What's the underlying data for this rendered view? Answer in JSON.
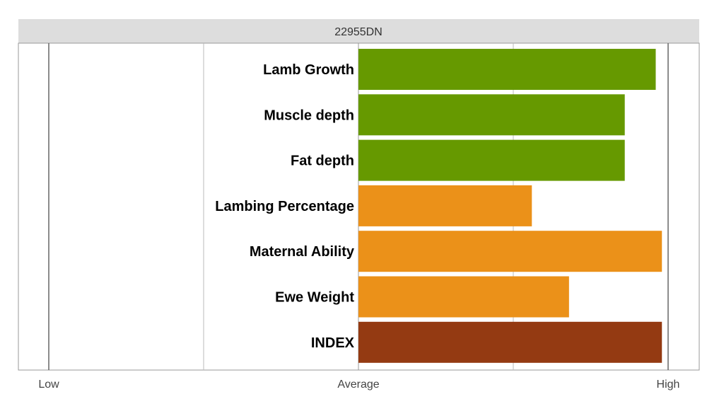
{
  "chart_data": {
    "type": "bar",
    "orientation": "horizontal",
    "title": "22955DN",
    "categories": [
      "Lamb Growth",
      "Muscle depth",
      "Fat depth",
      "Lambing Percentage",
      "Maternal Ability",
      "Ewe Weight",
      "INDEX"
    ],
    "values": [
      0.96,
      0.86,
      0.86,
      0.56,
      0.98,
      0.68,
      0.98
    ],
    "bar_colors": [
      "#669900",
      "#669900",
      "#669900",
      "#EB9119",
      "#EB9119",
      "#EB9119",
      "#943A12"
    ],
    "xlim": [
      -1,
      1
    ],
    "x_ticks": [
      {
        "value": -1,
        "label": "Low"
      },
      {
        "value": 0,
        "label": "Average"
      },
      {
        "value": 1,
        "label": "High"
      }
    ],
    "grid": true,
    "header_band_color": "#DDDDDD"
  }
}
